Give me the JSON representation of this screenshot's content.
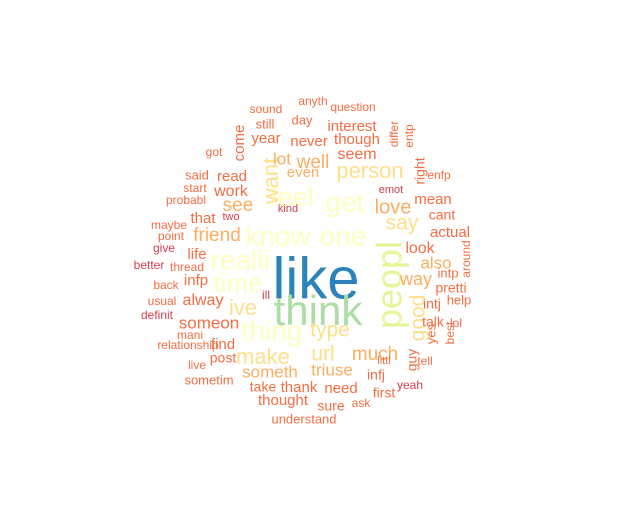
{
  "chart_data": {
    "type": "wordcloud",
    "palette": {
      "blue": "#2b83ba",
      "green": "#abdda4",
      "lightgreen": "#e6f598",
      "cream": "#ffffbf",
      "yellow": "#fee08b",
      "orange": "#fdae61",
      "darkorange": "#f46d43",
      "red": "#d53e4f"
    },
    "words": [
      {
        "text": "like",
        "weight": 100,
        "color": "blue",
        "rotated": false
      },
      {
        "text": "think",
        "weight": 62,
        "color": "green",
        "rotated": false
      },
      {
        "text": "peopl",
        "weight": 50,
        "color": "lightgreen",
        "rotated": true
      },
      {
        "text": "know",
        "weight": 42,
        "color": "cream",
        "rotated": false
      },
      {
        "text": "one",
        "weight": 42,
        "color": "cream",
        "rotated": false
      },
      {
        "text": "realli",
        "weight": 40,
        "color": "cream",
        "rotated": false
      },
      {
        "text": "time",
        "weight": 38,
        "color": "cream",
        "rotated": false
      },
      {
        "text": "feel",
        "weight": 38,
        "color": "cream",
        "rotated": false
      },
      {
        "text": "get",
        "weight": 38,
        "color": "cream",
        "rotated": false
      },
      {
        "text": "thing",
        "weight": 36,
        "color": "cream",
        "rotated": false
      },
      {
        "text": "person",
        "weight": 30,
        "color": "yellow",
        "rotated": false
      },
      {
        "text": "ive",
        "weight": 30,
        "color": "yellow",
        "rotated": false
      },
      {
        "text": "want",
        "weight": 28,
        "color": "yellow",
        "rotated": true
      },
      {
        "text": "make",
        "weight": 28,
        "color": "yellow",
        "rotated": false
      },
      {
        "text": "type",
        "weight": 26,
        "color": "yellow",
        "rotated": false
      },
      {
        "text": "url",
        "weight": 26,
        "color": "yellow",
        "rotated": false
      },
      {
        "text": "good",
        "weight": 26,
        "color": "yellow",
        "rotated": true
      },
      {
        "text": "say",
        "weight": 26,
        "color": "yellow",
        "rotated": false
      },
      {
        "text": "much",
        "weight": 22,
        "color": "orange",
        "rotated": false
      },
      {
        "text": "love",
        "weight": 22,
        "color": "orange",
        "rotated": false
      },
      {
        "text": "friend",
        "weight": 22,
        "color": "orange",
        "rotated": false
      },
      {
        "text": "see",
        "weight": 22,
        "color": "orange",
        "rotated": false
      },
      {
        "text": "way",
        "weight": 21,
        "color": "orange",
        "rotated": false
      },
      {
        "text": "well",
        "weight": 21,
        "color": "orange",
        "rotated": false
      },
      {
        "text": "someth",
        "weight": 20,
        "color": "orange",
        "rotated": false
      },
      {
        "text": "triuse",
        "weight": 19,
        "color": "orange",
        "rotated": false
      },
      {
        "text": "also",
        "weight": 19,
        "color": "orange",
        "rotated": false
      },
      {
        "text": "someon",
        "weight": 18,
        "color": "darkorange",
        "rotated": false
      },
      {
        "text": "lot",
        "weight": 18,
        "color": "orange",
        "rotated": false
      },
      {
        "text": "work",
        "weight": 18,
        "color": "darkorange",
        "rotated": false
      },
      {
        "text": "alway",
        "weight": 18,
        "color": "darkorange",
        "rotated": false
      },
      {
        "text": "seem",
        "weight": 18,
        "color": "darkorange",
        "rotated": false
      },
      {
        "text": "even",
        "weight": 17,
        "color": "orange",
        "rotated": false
      },
      {
        "text": "need",
        "weight": 17,
        "color": "darkorange",
        "rotated": false
      },
      {
        "text": "thank",
        "weight": 17,
        "color": "darkorange",
        "rotated": false
      },
      {
        "text": "look",
        "weight": 17,
        "color": "darkorange",
        "rotated": false
      },
      {
        "text": "find",
        "weight": 17,
        "color": "darkorange",
        "rotated": false
      },
      {
        "text": "read",
        "weight": 17,
        "color": "darkorange",
        "rotated": false
      },
      {
        "text": "life",
        "weight": 16,
        "color": "darkorange",
        "rotated": false
      },
      {
        "text": "infp",
        "weight": 16,
        "color": "darkorange",
        "rotated": false
      },
      {
        "text": "actual",
        "weight": 16,
        "color": "darkorange",
        "rotated": false
      },
      {
        "text": "thought",
        "weight": 16,
        "color": "darkorange",
        "rotated": false
      },
      {
        "text": "mean",
        "weight": 16,
        "color": "darkorange",
        "rotated": false
      },
      {
        "text": "interest",
        "weight": 16,
        "color": "darkorange",
        "rotated": false
      },
      {
        "text": "though",
        "weight": 16,
        "color": "darkorange",
        "rotated": false
      },
      {
        "text": "never",
        "weight": 16,
        "color": "darkorange",
        "rotated": false
      },
      {
        "text": "year",
        "weight": 16,
        "color": "darkorange",
        "rotated": false
      },
      {
        "text": "that",
        "weight": 16,
        "color": "darkorange",
        "rotated": false
      },
      {
        "text": "post",
        "weight": 15,
        "color": "darkorange",
        "rotated": false
      },
      {
        "text": "take",
        "weight": 15,
        "color": "darkorange",
        "rotated": false
      },
      {
        "text": "sure",
        "weight": 15,
        "color": "darkorange",
        "rotated": false
      },
      {
        "text": "infj",
        "weight": 15,
        "color": "darkorange",
        "rotated": false
      },
      {
        "text": "first",
        "weight": 15,
        "color": "darkorange",
        "rotated": false
      },
      {
        "text": "talk",
        "weight": 15,
        "color": "darkorange",
        "rotated": false
      },
      {
        "text": "intj",
        "weight": 15,
        "color": "darkorange",
        "rotated": false
      },
      {
        "text": "cant",
        "weight": 15,
        "color": "darkorange",
        "rotated": false
      },
      {
        "text": "pretti",
        "weight": 15,
        "color": "darkorange",
        "rotated": false
      },
      {
        "text": "come",
        "weight": 15,
        "color": "darkorange",
        "rotated": true
      },
      {
        "text": "guy",
        "weight": 15,
        "color": "darkorange",
        "rotated": true
      },
      {
        "text": "right",
        "weight": 14,
        "color": "darkorange",
        "rotated": true
      },
      {
        "text": "yes",
        "weight": 14,
        "color": "darkorange",
        "rotated": true
      },
      {
        "text": "said",
        "weight": 13,
        "color": "darkorange",
        "rotated": false
      },
      {
        "text": "intp",
        "weight": 13,
        "color": "darkorange",
        "rotated": false
      },
      {
        "text": "understand",
        "weight": 13,
        "color": "darkorange",
        "rotated": false
      },
      {
        "text": "sometim",
        "weight": 13,
        "color": "darkorange",
        "rotated": false
      },
      {
        "text": "still",
        "weight": 13,
        "color": "darkorange",
        "rotated": false
      },
      {
        "text": "day",
        "weight": 13,
        "color": "darkorange",
        "rotated": false
      },
      {
        "text": "help",
        "weight": 13,
        "color": "darkorange",
        "rotated": false
      },
      {
        "text": "question",
        "weight": 12,
        "color": "darkorange",
        "rotated": false
      },
      {
        "text": "sound",
        "weight": 12,
        "color": "darkorange",
        "rotated": false
      },
      {
        "text": "anyth",
        "weight": 12,
        "color": "darkorange",
        "rotated": false
      },
      {
        "text": "got",
        "weight": 12,
        "color": "darkorange",
        "rotated": false
      },
      {
        "text": "start",
        "weight": 12,
        "color": "darkorange",
        "rotated": false
      },
      {
        "text": "probabl",
        "weight": 12,
        "color": "darkorange",
        "rotated": false
      },
      {
        "text": "enfp",
        "weight": 12,
        "color": "darkorange",
        "rotated": false
      },
      {
        "text": "emot",
        "weight": 12,
        "color": "red",
        "rotated": false
      },
      {
        "text": "kind",
        "weight": 12,
        "color": "red",
        "rotated": false
      },
      {
        "text": "two",
        "weight": 12,
        "color": "red",
        "rotated": false
      },
      {
        "text": "maybe",
        "weight": 12,
        "color": "darkorange",
        "rotated": false
      },
      {
        "text": "point",
        "weight": 12,
        "color": "darkorange",
        "rotated": false
      },
      {
        "text": "give",
        "weight": 12,
        "color": "red",
        "rotated": false
      },
      {
        "text": "better",
        "weight": 12,
        "color": "red",
        "rotated": false
      },
      {
        "text": "thread",
        "weight": 12,
        "color": "darkorange",
        "rotated": false
      },
      {
        "text": "back",
        "weight": 12,
        "color": "darkorange",
        "rotated": false
      },
      {
        "text": "usual",
        "weight": 12,
        "color": "darkorange",
        "rotated": false
      },
      {
        "text": "definit",
        "weight": 12,
        "color": "red",
        "rotated": false
      },
      {
        "text": "mani",
        "weight": 12,
        "color": "darkorange",
        "rotated": false
      },
      {
        "text": "relationship",
        "weight": 12,
        "color": "darkorange",
        "rotated": false
      },
      {
        "text": "live",
        "weight": 12,
        "color": "darkorange",
        "rotated": false
      },
      {
        "text": "ask",
        "weight": 12,
        "color": "darkorange",
        "rotated": false
      },
      {
        "text": "yeah",
        "weight": 12,
        "color": "red",
        "rotated": false
      },
      {
        "text": "tell",
        "weight": 12,
        "color": "darkorange",
        "rotated": false
      },
      {
        "text": "lol",
        "weight": 12,
        "color": "darkorange",
        "rotated": false
      },
      {
        "text": "littl",
        "weight": 12,
        "color": "darkorange",
        "rotated": false
      },
      {
        "text": "ill",
        "weight": 12,
        "color": "red",
        "rotated": false
      },
      {
        "text": "best",
        "weight": 12,
        "color": "darkorange",
        "rotated": true
      },
      {
        "text": "around",
        "weight": 12,
        "color": "darkorange",
        "rotated": true
      },
      {
        "text": "differ",
        "weight": 12,
        "color": "darkorange",
        "rotated": true
      },
      {
        "text": "entp",
        "weight": 12,
        "color": "darkorange",
        "rotated": true
      }
    ]
  }
}
